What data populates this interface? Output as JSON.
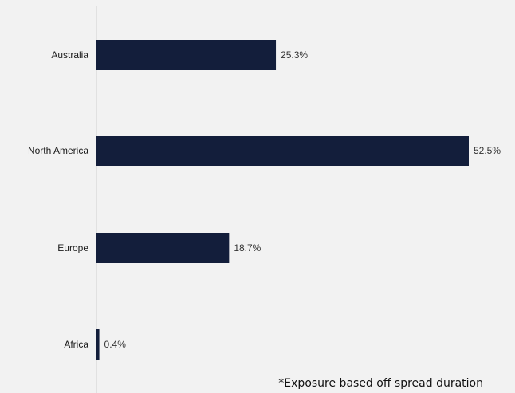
{
  "chart_data": {
    "type": "bar",
    "orientation": "horizontal",
    "categories": [
      "Australia",
      "North America",
      "Europe",
      "Africa"
    ],
    "values": [
      25.3,
      52.5,
      18.7,
      0.4
    ],
    "data_labels": [
      "25.3%",
      "52.5%",
      "18.7%",
      "0.4%"
    ],
    "unit": "%",
    "xlim": [
      0,
      52.5
    ],
    "grid": false,
    "legend": "none",
    "annotation": "*Exposure based off spread duration",
    "colors": {
      "bar": "#131e3b",
      "axis": "#d0d0d0",
      "background": "#f2f2f2"
    }
  }
}
